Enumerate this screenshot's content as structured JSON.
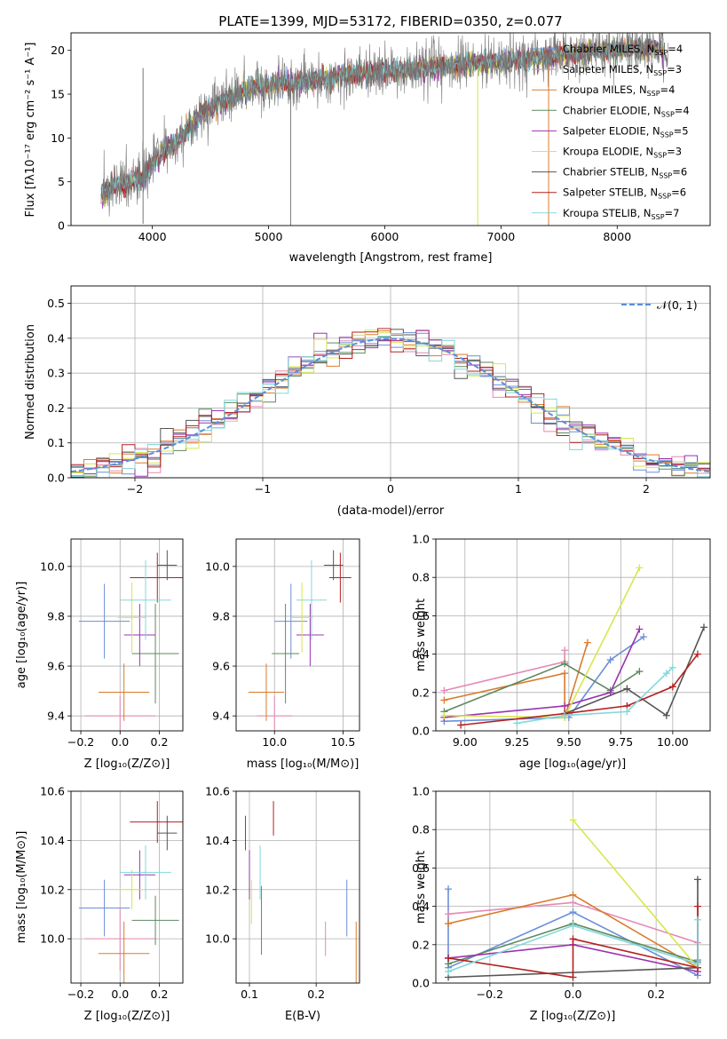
{
  "chart_data": [
    {
      "id": "spectrum",
      "type": "line",
      "title": "PLATE=1399, MJD=53172, FIBERID=0350, z=0.077",
      "xlabel": "wavelength [Angstrom, rest frame]",
      "ylabel": "Flux [fλ10⁻¹⁷ erg cm⁻² s⁻¹ A⁻¹]",
      "xlim": [
        3300,
        8800
      ],
      "ylim": [
        0,
        22
      ],
      "xticks": [
        4000,
        5000,
        6000,
        7000,
        8000
      ],
      "yticks": [
        0,
        5,
        10,
        15,
        20
      ],
      "grid": false,
      "legend_position": "top-right",
      "continuum": {
        "x": [
          3560,
          3650,
          3800,
          3900,
          4000,
          4100,
          4200,
          4300,
          4400,
          4500,
          4600,
          4700,
          4800,
          4900,
          5000,
          5200,
          5400,
          5600,
          5800,
          6000,
          6200,
          6400,
          6600,
          6800,
          7000,
          7200,
          7400,
          7600,
          7800,
          8000,
          8200,
          8400
        ],
        "y": [
          3.5,
          4.5,
          5.0,
          5.2,
          7.0,
          8.5,
          9.5,
          11.0,
          12.5,
          13.5,
          14.2,
          14.8,
          15.3,
          15.8,
          16.0,
          16.3,
          16.7,
          17.0,
          17.4,
          17.6,
          17.8,
          18.0,
          18.2,
          18.5,
          18.8,
          19.0,
          19.3,
          19.6,
          19.9,
          20.2,
          20.3,
          20.0
        ]
      },
      "series": [
        {
          "name": "Chabrier MILES, N_SSP=4",
          "label_main": "Chabrier MILES, N",
          "sub": "SSP",
          "suffix": "=4",
          "color": "#6a8fd8"
        },
        {
          "name": "Salpeter MILES, N_SSP=3",
          "label_main": "Salpeter MILES, N",
          "sub": "SSP",
          "suffix": "=3",
          "color": "#e589b4"
        },
        {
          "name": "Kroupa MILES, N_SSP=4",
          "label_main": "Kroupa MILES, N",
          "sub": "SSP",
          "suffix": "=4",
          "color": "#d97b2d"
        },
        {
          "name": "Chabrier ELODIE, N_SSP=4",
          "label_main": "Chabrier ELODIE, N",
          "sub": "SSP",
          "suffix": "=4",
          "color": "#5e8a5e"
        },
        {
          "name": "Salpeter ELODIE, N_SSP=5",
          "label_main": "Salpeter ELODIE, N",
          "sub": "SSP",
          "suffix": "=5",
          "color": "#9b33b0"
        },
        {
          "name": "Kroupa ELODIE, N_SSP=3",
          "label_main": "Kroupa ELODIE, N",
          "sub": "SSP",
          "suffix": "=3",
          "color": "#d8e64d"
        },
        {
          "name": "Chabrier STELIB, N_SSP=6",
          "label_main": "Chabrier STELIB, N",
          "sub": "SSP",
          "suffix": "=6",
          "color": "#555555"
        },
        {
          "name": "Salpeter STELIB, N_SSP=6",
          "label_main": "Salpeter STELIB, N",
          "sub": "SSP",
          "suffix": "=6",
          "color": "#b52020"
        },
        {
          "name": "Kroupa STELIB, N_SSP=7",
          "label_main": "Kroupa STELIB, N",
          "sub": "SSP",
          "suffix": "=7",
          "color": "#80d8dc"
        }
      ]
    },
    {
      "id": "hist",
      "type": "histogram",
      "xlabel": "(data-model)/error",
      "ylabel": "Normed distribution",
      "xlim": [
        -2.5,
        2.5
      ],
      "ylim": [
        0,
        0.55
      ],
      "xticks": [
        -2,
        -1,
        0,
        1,
        2
      ],
      "yticks": [
        0.0,
        0.1,
        0.2,
        0.3,
        0.4,
        0.5
      ],
      "grid": true,
      "legend_position": "top-right",
      "legend": "𝒩(0, 1)",
      "bin_width": 0.1,
      "normal": {
        "mean": 0,
        "sigma": 1,
        "color": "#5b8fd9"
      }
    },
    {
      "id": "z_age",
      "type": "errorbar",
      "xlabel": "Z [log₁₀(Z/Z⊙)]",
      "ylabel": "age  [log₁₀(age/yr)]",
      "xlim": [
        -0.25,
        0.32
      ],
      "ylim": [
        9.34,
        10.11
      ],
      "xticks": [
        -0.2,
        0.0,
        0.2
      ],
      "yticks": [
        9.4,
        9.6,
        9.8,
        10.0
      ],
      "grid": true,
      "points": [
        {
          "s": 0,
          "x": -0.08,
          "xerr": 0.13,
          "y": 9.78,
          "yerr": 0.15
        },
        {
          "s": 1,
          "x": 0.0,
          "xerr": 0.18,
          "y": 9.4,
          "yerr": 0.08
        },
        {
          "s": 2,
          "x": 0.02,
          "xerr": 0.13,
          "y": 9.495,
          "yerr": 0.115
        },
        {
          "s": 3,
          "x": 0.18,
          "xerr": 0.12,
          "y": 9.65,
          "yerr": 0.2
        },
        {
          "s": 4,
          "x": 0.1,
          "xerr": 0.08,
          "y": 9.725,
          "yerr": 0.125
        },
        {
          "s": 5,
          "x": 0.06,
          "xerr": 0.07,
          "y": 9.795,
          "yerr": 0.14
        },
        {
          "s": 6,
          "x": 0.24,
          "xerr": 0.05,
          "y": 10.005,
          "yerr": 0.06
        },
        {
          "s": 7,
          "x": 0.19,
          "xerr": 0.14,
          "y": 9.955,
          "yerr": 0.1
        },
        {
          "s": 8,
          "x": 0.13,
          "xerr": 0.13,
          "y": 9.865,
          "yerr": 0.16
        }
      ]
    },
    {
      "id": "mass_age",
      "type": "errorbar",
      "xlabel": "mass [log₁₀(M/M⊙)]",
      "ylabel": "",
      "xlim": [
        9.72,
        10.62
      ],
      "ylim": [
        9.34,
        10.11
      ],
      "xticks": [
        10.0,
        10.5
      ],
      "yticks": [
        9.4,
        9.6,
        9.8,
        10.0
      ],
      "grid": true,
      "points": [
        {
          "s": 0,
          "x": 10.12,
          "xerr": 0.12,
          "y": 9.78,
          "yerr": 0.15
        },
        {
          "s": 1,
          "x": 10.0,
          "xerr": 0.13,
          "y": 9.4,
          "yerr": 0.08
        },
        {
          "s": 2,
          "x": 9.94,
          "xerr": 0.13,
          "y": 9.495,
          "yerr": 0.115
        },
        {
          "s": 3,
          "x": 10.08,
          "xerr": 0.1,
          "y": 9.65,
          "yerr": 0.2
        },
        {
          "s": 4,
          "x": 10.26,
          "xerr": 0.1,
          "y": 9.725,
          "yerr": 0.125
        },
        {
          "s": 5,
          "x": 10.2,
          "xerr": 0.08,
          "y": 9.795,
          "yerr": 0.14
        },
        {
          "s": 6,
          "x": 10.43,
          "xerr": 0.07,
          "y": 10.005,
          "yerr": 0.06
        },
        {
          "s": 7,
          "x": 10.48,
          "xerr": 0.08,
          "y": 9.955,
          "yerr": 0.1
        },
        {
          "s": 8,
          "x": 10.27,
          "xerr": 0.11,
          "y": 9.865,
          "yerr": 0.16
        }
      ]
    },
    {
      "id": "weight_age",
      "type": "line",
      "xlabel": "age  [log₁₀(age/yr)]",
      "ylabel": "mass weight",
      "xlim": [
        8.86,
        10.18
      ],
      "ylim": [
        0,
        1.0
      ],
      "xticks": [
        9.0,
        9.25,
        9.5,
        9.75,
        10.0
      ],
      "yticks": [
        0.0,
        0.2,
        0.4,
        0.6,
        0.8,
        1.0
      ],
      "grid": true,
      "series": [
        {
          "s": 0,
          "x": [
            8.9,
            9.5,
            9.7,
            9.86
          ],
          "y": [
            0.05,
            0.07,
            0.37,
            0.49
          ]
        },
        {
          "s": 1,
          "x": [
            8.9,
            9.48,
            9.48
          ],
          "y": [
            0.21,
            0.36,
            0.42
          ]
        },
        {
          "s": 2,
          "x": [
            8.9,
            9.48,
            9.48,
            9.59
          ],
          "y": [
            0.16,
            0.3,
            0.07,
            0.46
          ]
        },
        {
          "s": 3,
          "x": [
            8.9,
            9.48,
            9.7,
            9.84
          ],
          "y": [
            0.1,
            0.35,
            0.21,
            0.31
          ]
        },
        {
          "s": 4,
          "x": [
            8.9,
            9.48,
            9.7,
            9.84
          ],
          "y": [
            0.07,
            0.13,
            0.2,
            0.53
          ]
        },
        {
          "s": 5,
          "x": [
            8.9,
            9.48,
            9.84
          ],
          "y": [
            0.08,
            0.07,
            0.85
          ]
        },
        {
          "s": 6,
          "x": [
            9.48,
            9.78,
            9.97,
            10.15
          ],
          "y": [
            0.09,
            0.22,
            0.08,
            0.54
          ]
        },
        {
          "s": 7,
          "x": [
            8.98,
            9.48,
            9.78,
            10.0,
            10.12
          ],
          "y": [
            0.03,
            0.09,
            0.13,
            0.23,
            0.4
          ]
        },
        {
          "s": 8,
          "x": [
            9.25,
            9.48,
            9.78,
            9.97,
            10.0
          ],
          "y": [
            0.04,
            0.08,
            0.1,
            0.3,
            0.33
          ]
        }
      ]
    },
    {
      "id": "z_mass",
      "type": "errorbar",
      "xlabel": "Z [log₁₀(Z/Z⊙)]",
      "ylabel": "mass [log₁₀(M/M⊙)]",
      "xlim": [
        -0.25,
        0.32
      ],
      "ylim": [
        9.82,
        10.6
      ],
      "xticks": [
        -0.2,
        0.0,
        0.2
      ],
      "yticks": [
        10.0,
        10.2,
        10.4,
        10.6
      ],
      "grid": true,
      "points": [
        {
          "s": 0,
          "x": -0.08,
          "xerr": 0.13,
          "y": 10.125,
          "yerr": 0.115
        },
        {
          "s": 1,
          "x": 0.0,
          "xerr": 0.18,
          "y": 10.0,
          "yerr": 0.13
        },
        {
          "s": 2,
          "x": 0.02,
          "xerr": 0.13,
          "y": 9.94,
          "yerr": 0.13
        },
        {
          "s": 3,
          "x": 0.18,
          "xerr": 0.12,
          "y": 10.075,
          "yerr": 0.1
        },
        {
          "s": 4,
          "x": 0.1,
          "xerr": 0.08,
          "y": 10.26,
          "yerr": 0.1
        },
        {
          "s": 5,
          "x": 0.06,
          "xerr": 0.07,
          "y": 10.2,
          "yerr": 0.08
        },
        {
          "s": 6,
          "x": 0.24,
          "xerr": 0.05,
          "y": 10.43,
          "yerr": 0.07
        },
        {
          "s": 7,
          "x": 0.19,
          "xerr": 0.14,
          "y": 10.475,
          "yerr": 0.085
        },
        {
          "s": 8,
          "x": 0.13,
          "xerr": 0.13,
          "y": 10.27,
          "yerr": 0.11
        }
      ]
    },
    {
      "id": "ebv_mass",
      "type": "errorbar",
      "xlabel": "E(B-V)",
      "ylabel": "",
      "xlim": [
        0.08,
        0.265
      ],
      "ylim": [
        9.82,
        10.6
      ],
      "xticks": [
        0.1,
        0.2
      ],
      "yticks": [
        10.0,
        10.2,
        10.4,
        10.6
      ],
      "grid": true,
      "points": [
        {
          "s": 0,
          "x": 0.246,
          "xerr": 0,
          "y": 10.125,
          "yerr": 0.115
        },
        {
          "s": 1,
          "x": 0.214,
          "xerr": 0,
          "y": 10.0,
          "yerr": 0.07
        },
        {
          "s": 2,
          "x": 0.26,
          "xerr": 0,
          "y": 9.94,
          "yerr": 0.13
        },
        {
          "s": 3,
          "x": 0.118,
          "xerr": 0,
          "y": 10.075,
          "yerr": 0.14
        },
        {
          "s": 4,
          "x": 0.1,
          "xerr": 0,
          "y": 10.26,
          "yerr": 0.1
        },
        {
          "s": 5,
          "x": 0.103,
          "xerr": 0,
          "y": 10.15,
          "yerr": 0.09
        },
        {
          "s": 6,
          "x": 0.094,
          "xerr": 0,
          "y": 10.43,
          "yerr": 0.07
        },
        {
          "s": 7,
          "x": 0.136,
          "xerr": 0,
          "y": 10.49,
          "yerr": 0.07
        },
        {
          "s": 8,
          "x": 0.116,
          "xerr": 0,
          "y": 10.27,
          "yerr": 0.11
        }
      ]
    },
    {
      "id": "weight_z",
      "type": "line",
      "xlabel": "Z [log₁₀(Z/Z⊙)]",
      "ylabel": "mass weight",
      "xlim": [
        -0.33,
        0.33
      ],
      "ylim": [
        0,
        1.0
      ],
      "xticks": [
        -0.2,
        0.0,
        0.2
      ],
      "yticks": [
        0.0,
        0.2,
        0.4,
        0.6,
        0.8,
        1.0
      ],
      "grid": true,
      "series": [
        {
          "s": 0,
          "x": [
            -0.3,
            -0.3,
            0.0,
            0.3,
            0.3
          ],
          "y": [
            0.49,
            0.08,
            0.37,
            0.04,
            0.12
          ]
        },
        {
          "s": 1,
          "x": [
            -0.3,
            0.0,
            0.3
          ],
          "y": [
            0.36,
            0.42,
            0.21
          ]
        },
        {
          "s": 2,
          "x": [
            -0.3,
            0.0,
            0.3
          ],
          "y": [
            0.31,
            0.46,
            0.08
          ]
        },
        {
          "s": 3,
          "x": [
            -0.3,
            0.0,
            0.3
          ],
          "y": [
            0.1,
            0.31,
            0.11
          ]
        },
        {
          "s": 4,
          "x": [
            -0.3,
            0.0,
            0.3
          ],
          "y": [
            0.13,
            0.2,
            0.06
          ]
        },
        {
          "s": 5,
          "x": [
            0.0,
            0.3
          ],
          "y": [
            0.85,
            0.08
          ]
        },
        {
          "s": 6,
          "x": [
            -0.3,
            0.3,
            0.3
          ],
          "y": [
            0.03,
            0.08,
            0.54
          ]
        },
        {
          "s": 7,
          "x": [
            -0.3,
            0.0,
            0.0,
            0.3,
            0.3
          ],
          "y": [
            0.13,
            0.03,
            0.23,
            0.08,
            0.4
          ]
        },
        {
          "s": 8,
          "x": [
            -0.3,
            0.0,
            0.3,
            0.3
          ],
          "y": [
            0.06,
            0.3,
            0.1,
            0.33
          ]
        }
      ]
    }
  ]
}
